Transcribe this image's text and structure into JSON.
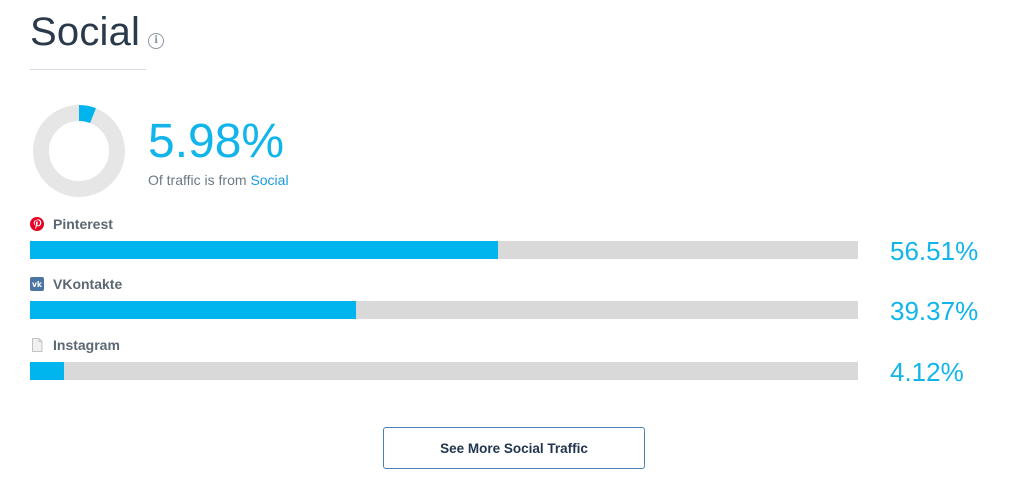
{
  "header": {
    "title": "Social",
    "info_icon": "info-icon"
  },
  "summary": {
    "percent_text": "5.98%",
    "percent_value": 5.98,
    "caption_prefix": "Of traffic is from ",
    "caption_link": "Social"
  },
  "colors": {
    "accent": "#00b4ee",
    "track": "#d9d9d9",
    "title": "#2b3a4a",
    "pinterest": "#e60023",
    "vkontakte": "#4c75a3",
    "button_border": "#4a7fb5"
  },
  "sources": [
    {
      "name": "Pinterest",
      "icon": "pinterest-icon",
      "percent_text": "56.51%",
      "percent_value": 56.51
    },
    {
      "name": "VKontakte",
      "icon": "vkontakte-icon",
      "percent_text": "39.37%",
      "percent_value": 39.37
    },
    {
      "name": "Instagram",
      "icon": "document-icon",
      "percent_text": "4.12%",
      "percent_value": 4.12
    }
  ],
  "actions": {
    "see_more_label": "See More Social Traffic"
  }
}
